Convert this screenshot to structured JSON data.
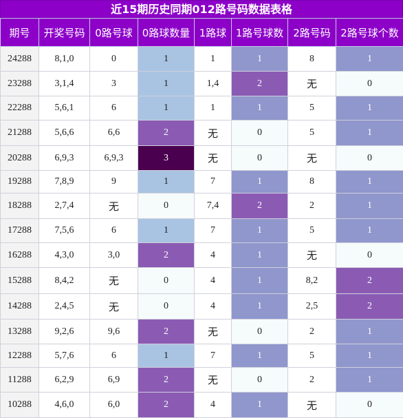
{
  "title": "近15期历史同期012路号码数据表格",
  "headers": [
    "期号",
    "开奖号码",
    "0路号球",
    "0路球数量",
    "1路球",
    "1路号球数",
    "2路号码",
    "2路号球个数"
  ],
  "rows": [
    [
      "24288",
      "8,1,0",
      "0",
      "1",
      "1",
      "1",
      "8",
      "1"
    ],
    [
      "23288",
      "3,1,4",
      "3",
      "1",
      "1,4",
      "2",
      "无",
      "0"
    ],
    [
      "22288",
      "5,6,1",
      "6",
      "1",
      "1",
      "1",
      "5",
      "1"
    ],
    [
      "21288",
      "5,6,6",
      "6,6",
      "2",
      "无",
      "0",
      "5",
      "1"
    ],
    [
      "20288",
      "6,9,3",
      "6,9,3",
      "3",
      "无",
      "0",
      "无",
      "0"
    ],
    [
      "19288",
      "7,8,9",
      "9",
      "1",
      "7",
      "1",
      "8",
      "1"
    ],
    [
      "18288",
      "2,7,4",
      "无",
      "0",
      "7,4",
      "2",
      "2",
      "1"
    ],
    [
      "17288",
      "7,5,6",
      "6",
      "1",
      "7",
      "1",
      "5",
      "1"
    ],
    [
      "16288",
      "4,3,0",
      "3,0",
      "2",
      "4",
      "1",
      "无",
      "0"
    ],
    [
      "15288",
      "8,4,2",
      "无",
      "0",
      "4",
      "1",
      "8,2",
      "2"
    ],
    [
      "14288",
      "2,4,5",
      "无",
      "0",
      "4",
      "1",
      "2,5",
      "2"
    ],
    [
      "13288",
      "9,2,6",
      "9,6",
      "2",
      "无",
      "0",
      "2",
      "1"
    ],
    [
      "12288",
      "5,7,6",
      "6",
      "1",
      "7",
      "1",
      "5",
      "1"
    ],
    [
      "11288",
      "6,2,9",
      "6,9",
      "2",
      "无",
      "0",
      "2",
      "1"
    ],
    [
      "10288",
      "4,6,0",
      "6,0",
      "2",
      "4",
      "1",
      "无",
      "0"
    ]
  ],
  "colors": {
    "header_bg": "#8c00c8",
    "count_0": "#f6fbfb",
    "count_1_zero_col": "#a9c4e2",
    "count_1_other": "#8f97cc",
    "count_2": "#8b5bb4",
    "count_3": "#4a004e"
  }
}
